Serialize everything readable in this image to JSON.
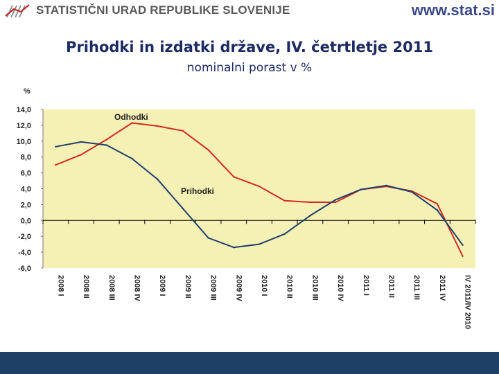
{
  "header": {
    "org_name": "STATISTIČNI URAD REPUBLIKE SLOVENIJE",
    "website": "www.stat.si"
  },
  "title": "Prihodki in izdatki države, IV. četrtletje 2011",
  "subtitle": "nominalni porast v %",
  "colors": {
    "plot_background": "#f5f0b4",
    "odhodki_line": "#d42a22",
    "prihodki_line": "#1f3e6e",
    "footer": "#1e3f66"
  },
  "chart_data": {
    "type": "line",
    "ylabel": "%",
    "ylim": [
      -6.0,
      14.0
    ],
    "yticks": [
      "14,0",
      "12,0",
      "10,0",
      "8,0",
      "6,0",
      "4,0",
      "2,0",
      "0,0",
      "-2,0",
      "-4,0",
      "-6,0"
    ],
    "categories": [
      "2008 I",
      "2008 II",
      "2008 III",
      "2008 IV",
      "2009 I",
      "2009 II",
      "2009 III",
      "2009 IV",
      "2010 I",
      "2010 II",
      "2010 III",
      "2010 IV",
      "2011 I",
      "2011 II",
      "2011 III",
      "2011 IV",
      "IV 2011/IV 2010"
    ],
    "series": [
      {
        "name": "Odhodki",
        "values": [
          7.0,
          8.3,
          10.2,
          12.3,
          11.9,
          11.3,
          8.9,
          5.5,
          4.3,
          2.5,
          2.3,
          2.3,
          3.9,
          4.3,
          3.7,
          2.1,
          -4.5
        ]
      },
      {
        "name": "Prihodki",
        "values": [
          9.3,
          9.9,
          9.5,
          7.8,
          5.2,
          1.5,
          -2.2,
          -3.4,
          -3.0,
          -1.7,
          0.6,
          2.6,
          3.9,
          4.4,
          3.6,
          1.3,
          -3.1
        ]
      }
    ]
  }
}
